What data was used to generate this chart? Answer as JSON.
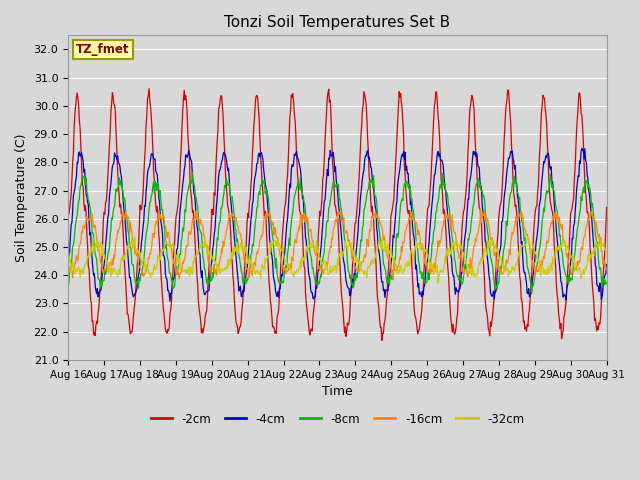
{
  "title": "Tonzi Soil Temperatures Set B",
  "xlabel": "Time",
  "ylabel": "Soil Temperature (C)",
  "annotation": "TZ_fmet",
  "ylim": [
    21.0,
    32.5
  ],
  "ytick_values": [
    21.0,
    22.0,
    23.0,
    24.0,
    25.0,
    26.0,
    27.0,
    28.0,
    29.0,
    30.0,
    31.0,
    32.0
  ],
  "n_days": 15,
  "n_points": 720,
  "series": [
    {
      "label": "-2cm",
      "color": "#dd0000",
      "mean": 26.2,
      "amplitude": 4.2,
      "phase": -1.57,
      "sharpness": 2.5,
      "trend": 0.04
    },
    {
      "label": "-4cm",
      "color": "#0000cc",
      "mean": 25.8,
      "amplitude": 2.5,
      "phase": -1.0,
      "sharpness": 1.0,
      "trend": 0.04
    },
    {
      "label": "-8cm",
      "color": "#00bb00",
      "mean": 25.5,
      "amplitude": 1.8,
      "phase": -0.4,
      "sharpness": 1.0,
      "trend": 0.035
    },
    {
      "label": "-16cm",
      "color": "#ff8800",
      "mean": 25.1,
      "amplitude": 1.0,
      "phase": 0.5,
      "sharpness": 1.0,
      "trend": 0.025
    },
    {
      "label": "-32cm",
      "color": "#cccc00",
      "mean": 24.6,
      "amplitude": 0.5,
      "phase": 1.8,
      "sharpness": 1.0,
      "trend": 0.015
    }
  ],
  "bg_color": "#d8d8d8",
  "plot_bg_color": "#d8d8d8",
  "grid_color": "#ffffff",
  "tick_labels": [
    "Aug 16",
    "Aug 17",
    "Aug 18",
    "Aug 19",
    "Aug 20",
    "Aug 21",
    "Aug 22",
    "Aug 23",
    "Aug 24",
    "Aug 25",
    "Aug 26",
    "Aug 27",
    "Aug 28",
    "Aug 29",
    "Aug 30",
    "Aug 31"
  ],
  "title_fontsize": 11,
  "axis_label_fontsize": 9,
  "tick_fontsize": 8
}
